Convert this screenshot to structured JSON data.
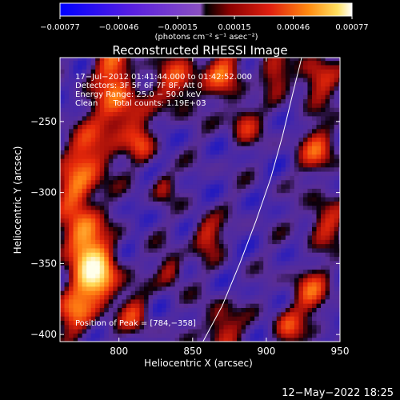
{
  "chart_data": {
    "type": "heatmap",
    "title": "Reconstructed RHESSI Image",
    "xlabel": "Heliocentric X (arcsec)",
    "ylabel": "Heliocentric Y (arcsec)",
    "xlim": [
      760,
      950
    ],
    "ylim": [
      -405,
      -205
    ],
    "x_ticks": [
      {
        "value": 800,
        "label": "800"
      },
      {
        "value": 850,
        "label": "850"
      },
      {
        "value": 900,
        "label": "900"
      },
      {
        "value": 950,
        "label": "950"
      }
    ],
    "y_ticks": [
      {
        "value": -250,
        "label": "−250"
      },
      {
        "value": -300,
        "label": "−300"
      },
      {
        "value": -350,
        "label": "−350"
      },
      {
        "value": -400,
        "label": "−400"
      }
    ],
    "colorbar": {
      "range": [
        -0.00077,
        0.00077
      ],
      "ticks": [
        {
          "value": -0.00077,
          "label": "−0.00077"
        },
        {
          "value": -0.00046,
          "label": "−0.00046"
        },
        {
          "value": -0.00015,
          "label": "−0.00015"
        },
        {
          "value": 0.00015,
          "label": "0.00015"
        },
        {
          "value": 0.00046,
          "label": "0.00046"
        },
        {
          "value": 0.00077,
          "label": "0.00077"
        }
      ],
      "units": "(photons cm⁻² s⁻¹ asec⁻²)"
    },
    "annotations": [
      "17−Jul−2012 01:41:44.000 to 01:42:52.000",
      "Detectors: 3F 5F 6F 7F 8F, Att 0",
      "Energy Range: 25.0 − 50.0 keV",
      "Clean      Total counts: 1.19E+03"
    ],
    "peak_label": "Position of Peak = [784,−358]",
    "peak": {
      "x": 784,
      "y": -358
    },
    "limb_line": [
      [
        857,
        -405
      ],
      [
        870,
        -380
      ],
      [
        882,
        -350
      ],
      [
        893,
        -320
      ],
      [
        903,
        -290
      ],
      [
        911,
        -260
      ],
      [
        918,
        -230
      ],
      [
        924,
        -205
      ]
    ],
    "colors": {
      "background": "#000000",
      "negative": "#3a2a9a",
      "zero": "#000000",
      "positive_low": "#c01010",
      "positive_mid": "#ff7010",
      "positive_high": "#ffffe0"
    }
  },
  "footer": {
    "timestamp": "12−May−2022 18:25"
  }
}
